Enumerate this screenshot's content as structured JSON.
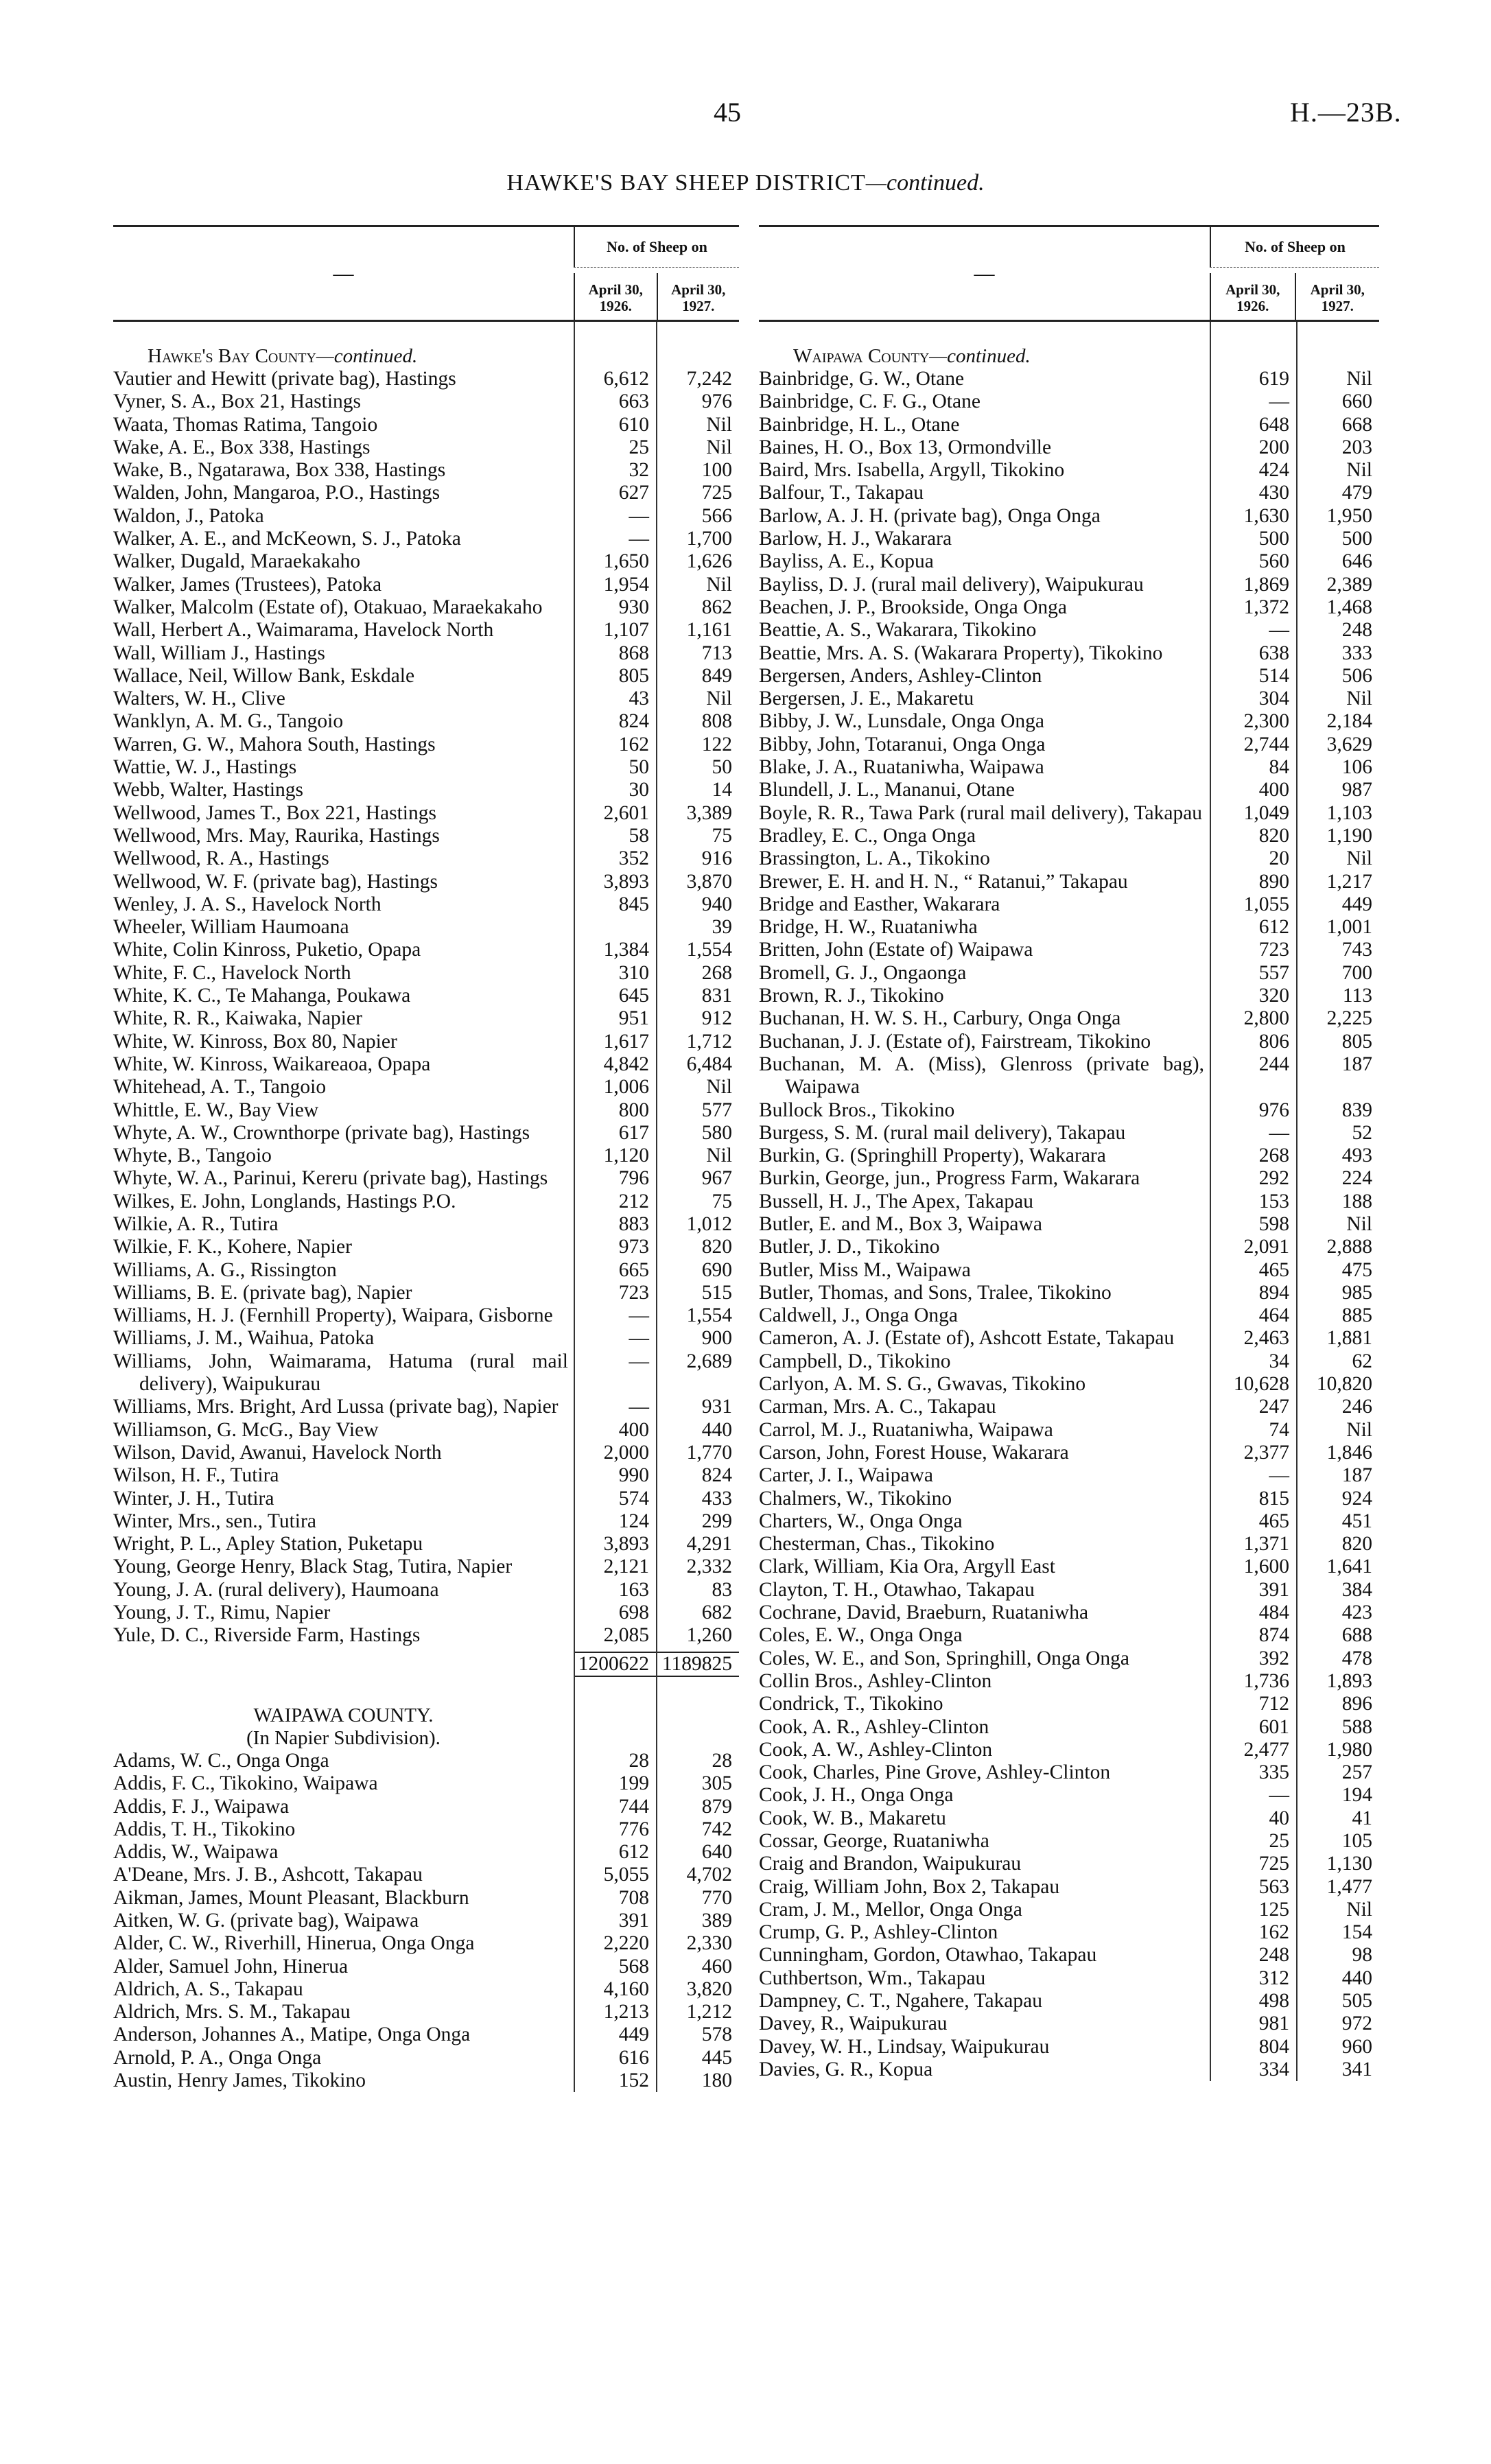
{
  "page": {
    "number": "45",
    "reference": "H.—23B.",
    "title": "HAWKE'S BAY SHEEP DISTRICT",
    "title_suffix": "—continued."
  },
  "table_header": {
    "blank": "—",
    "group": "No. of Sheep on",
    "col1": "April 30, 1926.",
    "col2": "April 30, 1927."
  },
  "left": {
    "sections": [
      {
        "heading": "Hawke's Bay County",
        "heading_suffix": "—continued.",
        "rows": [
          [
            "Vautier and Hewitt (private bag), Hastings",
            "6,612",
            "7,242"
          ],
          [
            "Vyner, S. A., Box 21, Hastings",
            "663",
            "976"
          ],
          [
            "Waata, Thomas Ratima, Tangoio",
            "610",
            "Nil"
          ],
          [
            "Wake, A. E., Box 338, Hastings",
            "25",
            "Nil"
          ],
          [
            "Wake, B., Ngatarawa, Box 338, Hastings",
            "32",
            "100"
          ],
          [
            "Walden, John, Mangaroa, P.O., Hastings",
            "627",
            "725"
          ],
          [
            "Waldon, J., Patoka",
            "—",
            "566"
          ],
          [
            "Walker, A. E., and McKeown, S. J., Patoka",
            "—",
            "1,700"
          ],
          [
            "Walker, Dugald, Maraekakaho",
            "1,650",
            "1,626"
          ],
          [
            "Walker, James (Trustees), Patoka",
            "1,954",
            "Nil"
          ],
          [
            "Walker, Malcolm (Estate of), Otakuao, Maraekakaho",
            "930",
            "862"
          ],
          [
            "Wall, Herbert A., Waimarama, Havelock North",
            "1,107",
            "1,161"
          ],
          [
            "Wall, William J., Hastings",
            "868",
            "713"
          ],
          [
            "Wallace, Neil, Willow Bank, Eskdale",
            "805",
            "849"
          ],
          [
            "Walters, W. H., Clive",
            "43",
            "Nil"
          ],
          [
            "Wanklyn, A. M. G., Tangoio",
            "824",
            "808"
          ],
          [
            "Warren, G. W., Mahora South, Hastings",
            "162",
            "122"
          ],
          [
            "Wattie, W. J., Hastings",
            "50",
            "50"
          ],
          [
            "Webb, Walter, Hastings",
            "30",
            "14"
          ],
          [
            "Wellwood, James T., Box 221, Hastings",
            "2,601",
            "3,389"
          ],
          [
            "Wellwood, Mrs. May, Raurika, Hastings",
            "58",
            "75"
          ],
          [
            "Wellwood, R. A., Hastings",
            "352",
            "916"
          ],
          [
            "Wellwood, W. F. (private bag), Hastings",
            "3,893",
            "3,870"
          ],
          [
            "Wenley, J. A. S., Havelock North",
            "845",
            "940"
          ],
          [
            "Wheeler, William Haumoana",
            "",
            "39"
          ],
          [
            "White, Colin Kinross, Puketio, Opapa",
            "1,384",
            "1,554"
          ],
          [
            "White, F. C., Havelock North",
            "310",
            "268"
          ],
          [
            "White, K. C., Te Mahanga, Poukawa",
            "645",
            "831"
          ],
          [
            "White, R. R., Kaiwaka, Napier",
            "951",
            "912"
          ],
          [
            "White, W. Kinross, Box 80, Napier",
            "1,617",
            "1,712"
          ],
          [
            "White, W. Kinross, Waikareaoa, Opapa",
            "4,842",
            "6,484"
          ],
          [
            "Whitehead, A. T., Tangoio",
            "1,006",
            "Nil"
          ],
          [
            "Whittle, E. W., Bay View",
            "800",
            "577"
          ],
          [
            "Whyte, A. W., Crownthorpe (private bag), Hastings",
            "617",
            "580"
          ],
          [
            "Whyte, B., Tangoio",
            "1,120",
            "Nil"
          ],
          [
            "Whyte, W. A., Parinui, Kereru (private bag), Hastings",
            "796",
            "967"
          ],
          [
            "Wilkes, E. John, Longlands, Hastings P.O.",
            "212",
            "75"
          ],
          [
            "Wilkie, A. R., Tutira",
            "883",
            "1,012"
          ],
          [
            "Wilkie, F. K., Kohere, Napier",
            "973",
            "820"
          ],
          [
            "Williams, A. G., Rissington",
            "665",
            "690"
          ],
          [
            "Williams, B. E. (private bag), Napier",
            "723",
            "515"
          ],
          [
            "Williams, H. J. (Fernhill Property), Waipara, Gisborne",
            "—",
            "1,554"
          ],
          [
            "Williams, J. M., Waihua, Patoka",
            "—",
            "900"
          ],
          [
            "Williams, John, Waimarama, Hatuma (rural mail delivery), Waipukurau",
            "—",
            "2,689"
          ],
          [
            "Williams, Mrs. Bright, Ard Lussa (private bag), Napier",
            "—",
            "931"
          ],
          [
            "Williamson, G. McG., Bay View",
            "400",
            "440"
          ],
          [
            "Wilson, David, Awanui, Havelock North",
            "2,000",
            "1,770"
          ],
          [
            "Wilson, H. F., Tutira",
            "990",
            "824"
          ],
          [
            "Winter, J. H., Tutira",
            "574",
            "433"
          ],
          [
            "Winter, Mrs., sen., Tutira",
            "124",
            "299"
          ],
          [
            "Wright, P. L., Apley Station, Puketapu",
            "3,893",
            "4,291"
          ],
          [
            "Young, George Henry, Black Stag, Tutira, Napier",
            "2,121",
            "2,332"
          ],
          [
            "Young, J. A. (rural delivery), Haumoana",
            "163",
            "83"
          ],
          [
            "Young, J. T., Rimu, Napier",
            "698",
            "682"
          ],
          [
            "Yule, D. C., Riverside Farm, Hastings",
            "2,085",
            "1,260"
          ]
        ],
        "total": [
          "1200622",
          "1189825"
        ]
      },
      {
        "heading": "WAIPAWA COUNTY.",
        "subheading": "(In Napier Subdivision).",
        "rows": [
          [
            "Adams, W. C., Onga Onga",
            "28",
            "28"
          ],
          [
            "Addis, F. C., Tikokino, Waipawa",
            "199",
            "305"
          ],
          [
            "Addis, F. J., Waipawa",
            "744",
            "879"
          ],
          [
            "Addis, T. H., Tikokino",
            "776",
            "742"
          ],
          [
            "Addis, W., Waipawa",
            "612",
            "640"
          ],
          [
            "A'Deane, Mrs. J. B., Ashcott, Takapau",
            "5,055",
            "4,702"
          ],
          [
            "Aikman, James, Mount Pleasant, Blackburn",
            "708",
            "770"
          ],
          [
            "Aitken, W. G. (private bag), Waipawa",
            "391",
            "389"
          ],
          [
            "Alder, C. W., Riverhill, Hinerua, Onga Onga",
            "2,220",
            "2,330"
          ],
          [
            "Alder, Samuel John, Hinerua",
            "568",
            "460"
          ],
          [
            "Aldrich, A. S., Takapau",
            "4,160",
            "3,820"
          ],
          [
            "Aldrich, Mrs. S. M., Takapau",
            "1,213",
            "1,212"
          ],
          [
            "Anderson, Johannes A., Matipe, Onga Onga",
            "449",
            "578"
          ],
          [
            "Arnold, P. A., Onga Onga",
            "616",
            "445"
          ],
          [
            "Austin, Henry James, Tikokino",
            "152",
            "180"
          ]
        ]
      }
    ]
  },
  "right": {
    "sections": [
      {
        "heading": "Waipawa County",
        "heading_suffix": "—continued.",
        "rows": [
          [
            "Bainbridge, G. W., Otane",
            "619",
            "Nil"
          ],
          [
            "Bainbridge, C. F. G., Otane",
            "—",
            "660"
          ],
          [
            "Bainbridge, H. L., Otane",
            "648",
            "668"
          ],
          [
            "Baines, H. O., Box 13, Ormondville",
            "200",
            "203"
          ],
          [
            "Baird, Mrs. Isabella, Argyll, Tikokino",
            "424",
            "Nil"
          ],
          [
            "Balfour, T., Takapau",
            "430",
            "479"
          ],
          [
            "Barlow, A. J. H. (private bag), Onga Onga",
            "1,630",
            "1,950"
          ],
          [
            "Barlow, H. J., Wakarara",
            "500",
            "500"
          ],
          [
            "Bayliss, A. E., Kopua",
            "560",
            "646"
          ],
          [
            "Bayliss, D. J. (rural mail delivery), Waipukurau",
            "1,869",
            "2,389"
          ],
          [
            "Beachen, J. P., Brookside, Onga Onga",
            "1,372",
            "1,468"
          ],
          [
            "Beattie, A. S., Wakarara, Tikokino",
            "—",
            "248"
          ],
          [
            "Beattie, Mrs. A. S. (Wakarara Property), Tikokino",
            "638",
            "333"
          ],
          [
            "Bergersen, Anders, Ashley-Clinton",
            "514",
            "506"
          ],
          [
            "Bergersen, J. E., Makaretu",
            "304",
            "Nil"
          ],
          [
            "Bibby, J. W., Lunsdale, Onga Onga",
            "2,300",
            "2,184"
          ],
          [
            "Bibby, John, Totaranui, Onga Onga",
            "2,744",
            "3,629"
          ],
          [
            "Blake, J. A., Ruataniwha, Waipawa",
            "84",
            "106"
          ],
          [
            "Blundell, J. L., Mananui, Otane",
            "400",
            "987"
          ],
          [
            "Boyle, R. R., Tawa Park (rural mail delivery), Takapau",
            "1,049",
            "1,103"
          ],
          [
            "Bradley, E. C., Onga Onga",
            "820",
            "1,190"
          ],
          [
            "Brassington, L. A., Tikokino",
            "20",
            "Nil"
          ],
          [
            "Brewer, E. H. and H. N., “ Ratanui,” Takapau",
            "890",
            "1,217"
          ],
          [
            "Bridge and Easther, Wakarara",
            "1,055",
            "449"
          ],
          [
            "Bridge, H. W., Ruataniwha",
            "612",
            "1,001"
          ],
          [
            "Britten, John (Estate of) Waipawa",
            "723",
            "743"
          ],
          [
            "Bromell, G. J., Ongaonga",
            "557",
            "700"
          ],
          [
            "Brown, R. J., Tikokino",
            "320",
            "113"
          ],
          [
            "Buchanan, H. W. S. H., Carbury, Onga Onga",
            "2,800",
            "2,225"
          ],
          [
            "Buchanan, J. J. (Estate of), Fairstream, Tikokino",
            "806",
            "805"
          ],
          [
            "Buchanan, M. A. (Miss), Glenross (private bag), Waipawa",
            "244",
            "187"
          ],
          [
            "Bullock Bros., Tikokino",
            "976",
            "839"
          ],
          [
            "Burgess, S. M. (rural mail delivery), Takapau",
            "—",
            "52"
          ],
          [
            "Burkin, G. (Springhill Property), Wakarara",
            "268",
            "493"
          ],
          [
            "Burkin, George, jun., Progress Farm, Wakarara",
            "292",
            "224"
          ],
          [
            "Bussell, H. J., The Apex, Takapau",
            "153",
            "188"
          ],
          [
            "Butler, E. and M., Box 3, Waipawa",
            "598",
            "Nil"
          ],
          [
            "Butler, J. D., Tikokino",
            "2,091",
            "2,888"
          ],
          [
            "Butler, Miss M., Waipawa",
            "465",
            "475"
          ],
          [
            "Butler, Thomas, and Sons, Tralee, Tikokino",
            "894",
            "985"
          ],
          [
            "Caldwell, J., Onga Onga",
            "464",
            "885"
          ],
          [
            "Cameron, A. J. (Estate of), Ashcott Estate, Takapau",
            "2,463",
            "1,881"
          ],
          [
            "Campbell, D., Tikokino",
            "34",
            "62"
          ],
          [
            "Carlyon, A. M. S. G., Gwavas, Tikokino",
            "10,628",
            "10,820"
          ],
          [
            "Carman, Mrs. A. C., Takapau",
            "247",
            "246"
          ],
          [
            "Carrol, M. J., Ruataniwha, Waipawa",
            "74",
            "Nil"
          ],
          [
            "Carson, John, Forest House, Wakarara",
            "2,377",
            "1,846"
          ],
          [
            "Carter, J. I., Waipawa",
            "—",
            "187"
          ],
          [
            "Chalmers, W., Tikokino",
            "815",
            "924"
          ],
          [
            "Charters, W., Onga Onga",
            "465",
            "451"
          ],
          [
            "Chesterman, Chas., Tikokino",
            "1,371",
            "820"
          ],
          [
            "Clark, William, Kia Ora, Argyll East",
            "1,600",
            "1,641"
          ],
          [
            "Clayton, T. H., Otawhao, Takapau",
            "391",
            "384"
          ],
          [
            "Cochrane, David, Braeburn, Ruataniwha",
            "484",
            "423"
          ],
          [
            "Coles, E. W., Onga Onga",
            "874",
            "688"
          ],
          [
            "Coles, W. E., and Son, Springhill, Onga Onga",
            "392",
            "478"
          ],
          [
            "Collin Bros., Ashley-Clinton",
            "1,736",
            "1,893"
          ],
          [
            "Condrick, T., Tikokino",
            "712",
            "896"
          ],
          [
            "Cook, A. R., Ashley-Clinton",
            "601",
            "588"
          ],
          [
            "Cook, A. W., Ashley-Clinton",
            "2,477",
            "1,980"
          ],
          [
            "Cook, Charles, Pine Grove, Ashley-Clinton",
            "335",
            "257"
          ],
          [
            "Cook, J. H., Onga Onga",
            "—",
            "194"
          ],
          [
            "Cook, W. B., Makaretu",
            "40",
            "41"
          ],
          [
            "Cossar, George, Ruataniwha",
            "25",
            "105"
          ],
          [
            "Craig and Brandon, Waipukurau",
            "725",
            "1,130"
          ],
          [
            "Craig, William John, Box 2, Takapau",
            "563",
            "1,477"
          ],
          [
            "Cram, J. M., Mellor, Onga Onga",
            "125",
            "Nil"
          ],
          [
            "Crump, G. P., Ashley-Clinton",
            "162",
            "154"
          ],
          [
            "Cunningham, Gordon, Otawhao, Takapau",
            "248",
            "98"
          ],
          [
            "Cuthbertson, Wm., Takapau",
            "312",
            "440"
          ],
          [
            "Dampney, C. T., Ngahere, Takapau",
            "498",
            "505"
          ],
          [
            "Davey, R., Waipukurau",
            "981",
            "972"
          ],
          [
            "Davey, W. H., Lindsay, Waipukurau",
            "804",
            "960"
          ],
          [
            "Davies, G. R., Kopua",
            "334",
            "341"
          ]
        ]
      }
    ]
  }
}
